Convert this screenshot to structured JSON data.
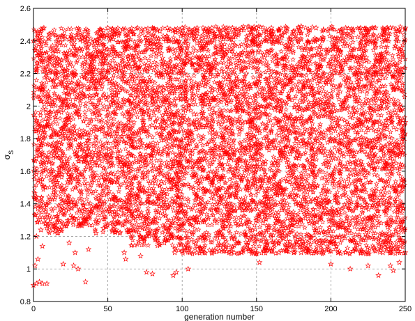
{
  "chart_data": {
    "type": "scatter",
    "title": "",
    "xlabel": "generation number",
    "ylabel": "σ",
    "ylabel_subscript": "S",
    "xlim": [
      0,
      250
    ],
    "ylim": [
      0.8,
      2.6
    ],
    "xticks": [
      "0",
      "50",
      "100",
      "150",
      "200",
      "250"
    ],
    "yticks": [
      "0.8",
      "1",
      "1.2",
      "1.4",
      "1.6",
      "1.8",
      "2",
      "2.2",
      "2.4",
      "2.6"
    ],
    "grid": true,
    "marker": "star",
    "marker_color": "#ff0000",
    "series": [
      {
        "points": [
          [
            0,
            0.9
          ],
          [
            2,
            0.91
          ],
          [
            4,
            0.92
          ],
          [
            6,
            0.91
          ],
          [
            9,
            0.91
          ],
          [
            1,
            1.02
          ],
          [
            3,
            1.06
          ],
          [
            6,
            1.14
          ],
          [
            2,
            1.2
          ],
          [
            5,
            1.24
          ],
          [
            1,
            1.33
          ],
          [
            3,
            1.37
          ],
          [
            11,
            1.28
          ],
          [
            13,
            1.24
          ],
          [
            27,
            1.02
          ],
          [
            30,
            1.0
          ],
          [
            28,
            1.1
          ],
          [
            35,
            0.92
          ],
          [
            24,
            1.16
          ],
          [
            37,
            1.12
          ],
          [
            62,
            1.06
          ],
          [
            61,
            1.1
          ],
          [
            72,
            1.08
          ],
          [
            76,
            0.98
          ],
          [
            80,
            0.97
          ],
          [
            94,
            0.96
          ],
          [
            96,
            0.98
          ],
          [
            152,
            1.04
          ],
          [
            213,
            1.0
          ],
          [
            232,
            0.96
          ],
          [
            240,
            1.02
          ],
          [
            246,
            1.04
          ],
          [
            242,
            0.99
          ],
          [
            104,
            1.0
          ],
          [
            200,
            1.03
          ],
          [
            225,
            1.02
          ],
          [
            20,
            1.03
          ],
          [
            8,
            1.28
          ],
          [
            16,
            1.22
          ],
          [
            19,
            1.26
          ],
          [
            0,
            2.4
          ],
          [
            3,
            2.45
          ],
          [
            7,
            2.48
          ],
          [
            10,
            2.42
          ],
          [
            13,
            2.44
          ],
          [
            18,
            2.39
          ],
          [
            24,
            2.41
          ],
          [
            30,
            2.44
          ],
          [
            36,
            2.36
          ],
          [
            41,
            2.4
          ],
          [
            50,
            2.48
          ],
          [
            60,
            2.47
          ],
          [
            70,
            2.48
          ],
          [
            80,
            2.48
          ],
          [
            90,
            2.48
          ],
          [
            100,
            2.48
          ],
          [
            110,
            2.48
          ],
          [
            120,
            2.48
          ],
          [
            130,
            2.48
          ],
          [
            140,
            2.48
          ],
          [
            150,
            2.48
          ],
          [
            160,
            2.48
          ],
          [
            170,
            2.48
          ],
          [
            180,
            2.49
          ],
          [
            190,
            2.48
          ],
          [
            200,
            2.48
          ],
          [
            210,
            2.48
          ],
          [
            220,
            2.48
          ],
          [
            230,
            2.48
          ],
          [
            240,
            2.48
          ],
          [
            250,
            2.48
          ],
          [
            45,
            2.47
          ],
          [
            55,
            2.46
          ],
          [
            65,
            2.46
          ],
          [
            75,
            2.47
          ],
          [
            85,
            2.46
          ],
          [
            95,
            2.47
          ],
          [
            105,
            2.47
          ],
          [
            115,
            2.46
          ],
          [
            125,
            2.47
          ],
          [
            135,
            2.46
          ],
          [
            145,
            2.47
          ],
          [
            155,
            2.46
          ],
          [
            165,
            2.47
          ],
          [
            175,
            2.46
          ],
          [
            185,
            2.47
          ],
          [
            195,
            2.47
          ],
          [
            205,
            2.46
          ],
          [
            215,
            2.47
          ],
          [
            225,
            2.46
          ],
          [
            235,
            2.47
          ],
          [
            245,
            2.46
          ],
          [
            95,
            1.1
          ],
          [
            105,
            1.1
          ],
          [
            115,
            1.1
          ],
          [
            125,
            1.11
          ],
          [
            135,
            1.1
          ],
          [
            145,
            1.11
          ],
          [
            155,
            1.11
          ],
          [
            165,
            1.1
          ],
          [
            175,
            1.1
          ],
          [
            185,
            1.11
          ],
          [
            195,
            1.1
          ],
          [
            205,
            1.1
          ],
          [
            215,
            1.11
          ],
          [
            225,
            1.1
          ],
          [
            235,
            1.1
          ],
          [
            245,
            1.11
          ],
          [
            250,
            1.1
          ],
          [
            100,
            1.11
          ],
          [
            110,
            1.1
          ],
          [
            120,
            1.1
          ],
          [
            130,
            1.11
          ],
          [
            140,
            1.1
          ],
          [
            150,
            1.1
          ],
          [
            160,
            1.11
          ],
          [
            170,
            1.11
          ],
          [
            180,
            1.1
          ],
          [
            190,
            1.1
          ],
          [
            200,
            1.11
          ],
          [
            210,
            1.1
          ],
          [
            220,
            1.1
          ],
          [
            230,
            1.11
          ],
          [
            240,
            1.1
          ],
          [
            67,
            1.24
          ],
          [
            72,
            1.2
          ],
          [
            77,
            1.22
          ],
          [
            82,
            1.18
          ],
          [
            88,
            1.16
          ],
          [
            93,
            1.19
          ],
          [
            42,
            1.22
          ],
          [
            47,
            1.25
          ],
          [
            53,
            1.23
          ],
          [
            58,
            1.22
          ],
          [
            63,
            1.24
          ],
          [
            34,
            1.3
          ],
          [
            38,
            1.34
          ],
          [
            26,
            1.32
          ],
          [
            22,
            1.36
          ],
          [
            45,
            1.4
          ],
          [
            8,
            1.5
          ],
          [
            12,
            1.6
          ],
          [
            16,
            1.7
          ],
          [
            20,
            1.8
          ],
          [
            24,
            1.9
          ],
          [
            28,
            2.0
          ],
          [
            32,
            2.1
          ],
          [
            36,
            2.2
          ],
          [
            40,
            2.3
          ],
          [
            44,
            1.45
          ],
          [
            48,
            1.55
          ],
          [
            52,
            1.65
          ],
          [
            56,
            1.75
          ],
          [
            60,
            1.85
          ],
          [
            64,
            1.95
          ],
          [
            68,
            2.05
          ],
          [
            72,
            2.15
          ],
          [
            76,
            2.25
          ],
          [
            80,
            2.35
          ],
          [
            84,
            1.35
          ],
          [
            88,
            1.45
          ],
          [
            92,
            1.55
          ],
          [
            96,
            1.65
          ],
          [
            100,
            1.75
          ],
          [
            104,
            1.85
          ],
          [
            108,
            1.95
          ],
          [
            112,
            2.05
          ],
          [
            116,
            2.15
          ],
          [
            120,
            2.25
          ],
          [
            124,
            2.35
          ],
          [
            128,
            1.25
          ],
          [
            132,
            1.35
          ],
          [
            136,
            1.45
          ],
          [
            140,
            1.55
          ],
          [
            144,
            1.65
          ],
          [
            148,
            1.75
          ],
          [
            152,
            1.85
          ],
          [
            156,
            1.95
          ],
          [
            160,
            2.05
          ],
          [
            164,
            2.15
          ],
          [
            168,
            2.25
          ],
          [
            172,
            2.35
          ],
          [
            176,
            1.2
          ],
          [
            180,
            1.3
          ],
          [
            184,
            1.4
          ],
          [
            188,
            1.5
          ],
          [
            192,
            1.6
          ],
          [
            196,
            1.7
          ],
          [
            200,
            1.8
          ],
          [
            204,
            1.9
          ],
          [
            208,
            2.0
          ],
          [
            212,
            2.1
          ],
          [
            216,
            2.2
          ],
          [
            220,
            2.3
          ],
          [
            224,
            2.4
          ],
          [
            228,
            1.3
          ],
          [
            232,
            1.4
          ],
          [
            236,
            1.5
          ],
          [
            240,
            1.6
          ],
          [
            244,
            1.7
          ],
          [
            248,
            1.8
          ],
          [
            250,
            1.9
          ],
          [
            246,
            2.0
          ],
          [
            242,
            2.1
          ],
          [
            238,
            2.2
          ],
          [
            234,
            2.3
          ],
          [
            230,
            2.4
          ],
          [
            4,
            1.7
          ],
          [
            6,
            2.1
          ],
          [
            14,
            2.25
          ]
        ]
      }
    ],
    "fill_regions": [
      {
        "x_from": 0,
        "x_to": 8,
        "y_from": 1.28,
        "y_to": 2.48
      },
      {
        "x_from": 8,
        "x_to": 20,
        "y_from": 1.22,
        "y_to": 2.48
      },
      {
        "x_from": 20,
        "x_to": 40,
        "y_from": 1.26,
        "y_to": 2.48
      },
      {
        "x_from": 40,
        "x_to": 65,
        "y_from": 1.22,
        "y_to": 2.48
      },
      {
        "x_from": 65,
        "x_to": 95,
        "y_from": 1.14,
        "y_to": 2.48
      },
      {
        "x_from": 95,
        "x_to": 250,
        "y_from": 1.09,
        "y_to": 2.49
      }
    ]
  }
}
